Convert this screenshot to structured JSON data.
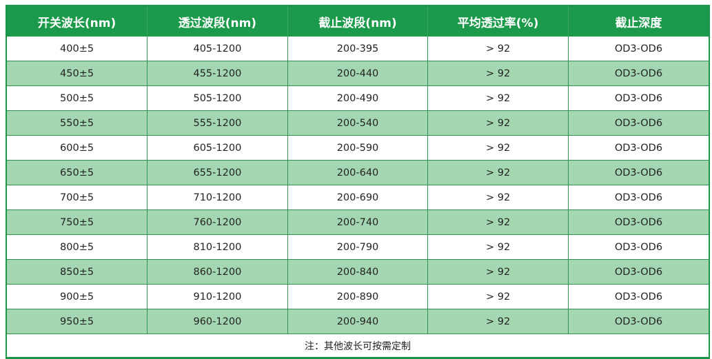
{
  "table": {
    "headers": [
      "开关波长(nm)",
      "透过波段(nm)",
      "截止波段(nm)",
      "平均透过率(%)",
      "截止深度"
    ],
    "rows": [
      [
        "400±5",
        "405-1200",
        "200-395",
        "> 92",
        "OD3-OD6"
      ],
      [
        "450±5",
        "455-1200",
        "200-440",
        "> 92",
        "OD3-OD6"
      ],
      [
        "500±5",
        "505-1200",
        "200-490",
        "> 92",
        "OD3-OD6"
      ],
      [
        "550±5",
        "555-1200",
        "200-540",
        "> 92",
        "OD3-OD6"
      ],
      [
        "600±5",
        "605-1200",
        "200-590",
        "> 92",
        "OD3-OD6"
      ],
      [
        "650±5",
        "655-1200",
        "200-640",
        "> 92",
        "OD3-OD6"
      ],
      [
        "700±5",
        "710-1200",
        "200-690",
        "> 92",
        "OD3-OD6"
      ],
      [
        "750±5",
        "760-1200",
        "200-740",
        "> 92",
        "OD3-OD6"
      ],
      [
        "800±5",
        "810-1200",
        "200-790",
        "> 92",
        "OD3-OD6"
      ],
      [
        "850±5",
        "860-1200",
        "200-840",
        "> 92",
        "OD3-OD6"
      ],
      [
        "900±5",
        "910-1200",
        "200-890",
        "> 92",
        "OD3-OD6"
      ],
      [
        "950±5",
        "960-1200",
        "200-940",
        "> 92",
        "OD3-OD6"
      ]
    ],
    "note": "注：其他波长可按需定制"
  },
  "colors": {
    "header": "#1b9a4b",
    "alt_row": "#a3d6b1",
    "border": "#2f8f4f"
  }
}
